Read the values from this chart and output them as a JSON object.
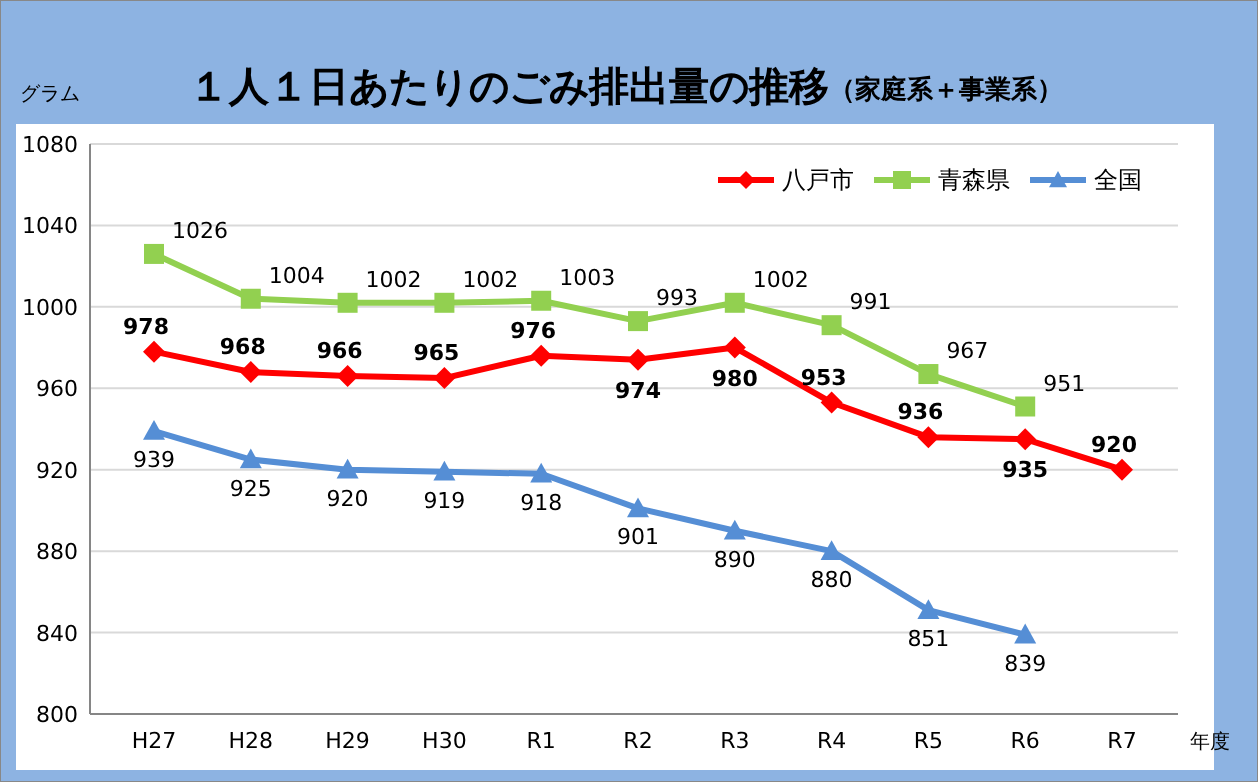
{
  "chart_data": {
    "type": "line",
    "title": "１人１日あたりのごみ排出量の推移",
    "subtitle": "（家庭系＋事業系）",
    "ylabel": "グラム",
    "xlabel": "年度",
    "categories": [
      "H27",
      "H28",
      "H29",
      "H30",
      "R1",
      "R2",
      "R3",
      "R4",
      "R5",
      "R6",
      "R7"
    ],
    "series": [
      {
        "name": "八戸市",
        "color": "#ff0000",
        "marker": "diamond",
        "values": [
          978,
          968,
          966,
          965,
          976,
          974,
          980,
          953,
          936,
          935,
          920
        ]
      },
      {
        "name": "青森県",
        "color": "#92d050",
        "marker": "square",
        "values": [
          1026,
          1004,
          1002,
          1002,
          1003,
          993,
          1002,
          991,
          967,
          951,
          null
        ]
      },
      {
        "name": "全国",
        "color": "#558ed5",
        "marker": "triangle",
        "values": [
          939,
          925,
          920,
          919,
          918,
          901,
          890,
          880,
          851,
          839,
          null
        ]
      }
    ],
    "ylim": [
      800,
      1080
    ],
    "yticks": [
      800,
      840,
      880,
      920,
      960,
      1000,
      1040,
      1080
    ],
    "grid": "y",
    "legend": "top right",
    "data_labels": true
  }
}
